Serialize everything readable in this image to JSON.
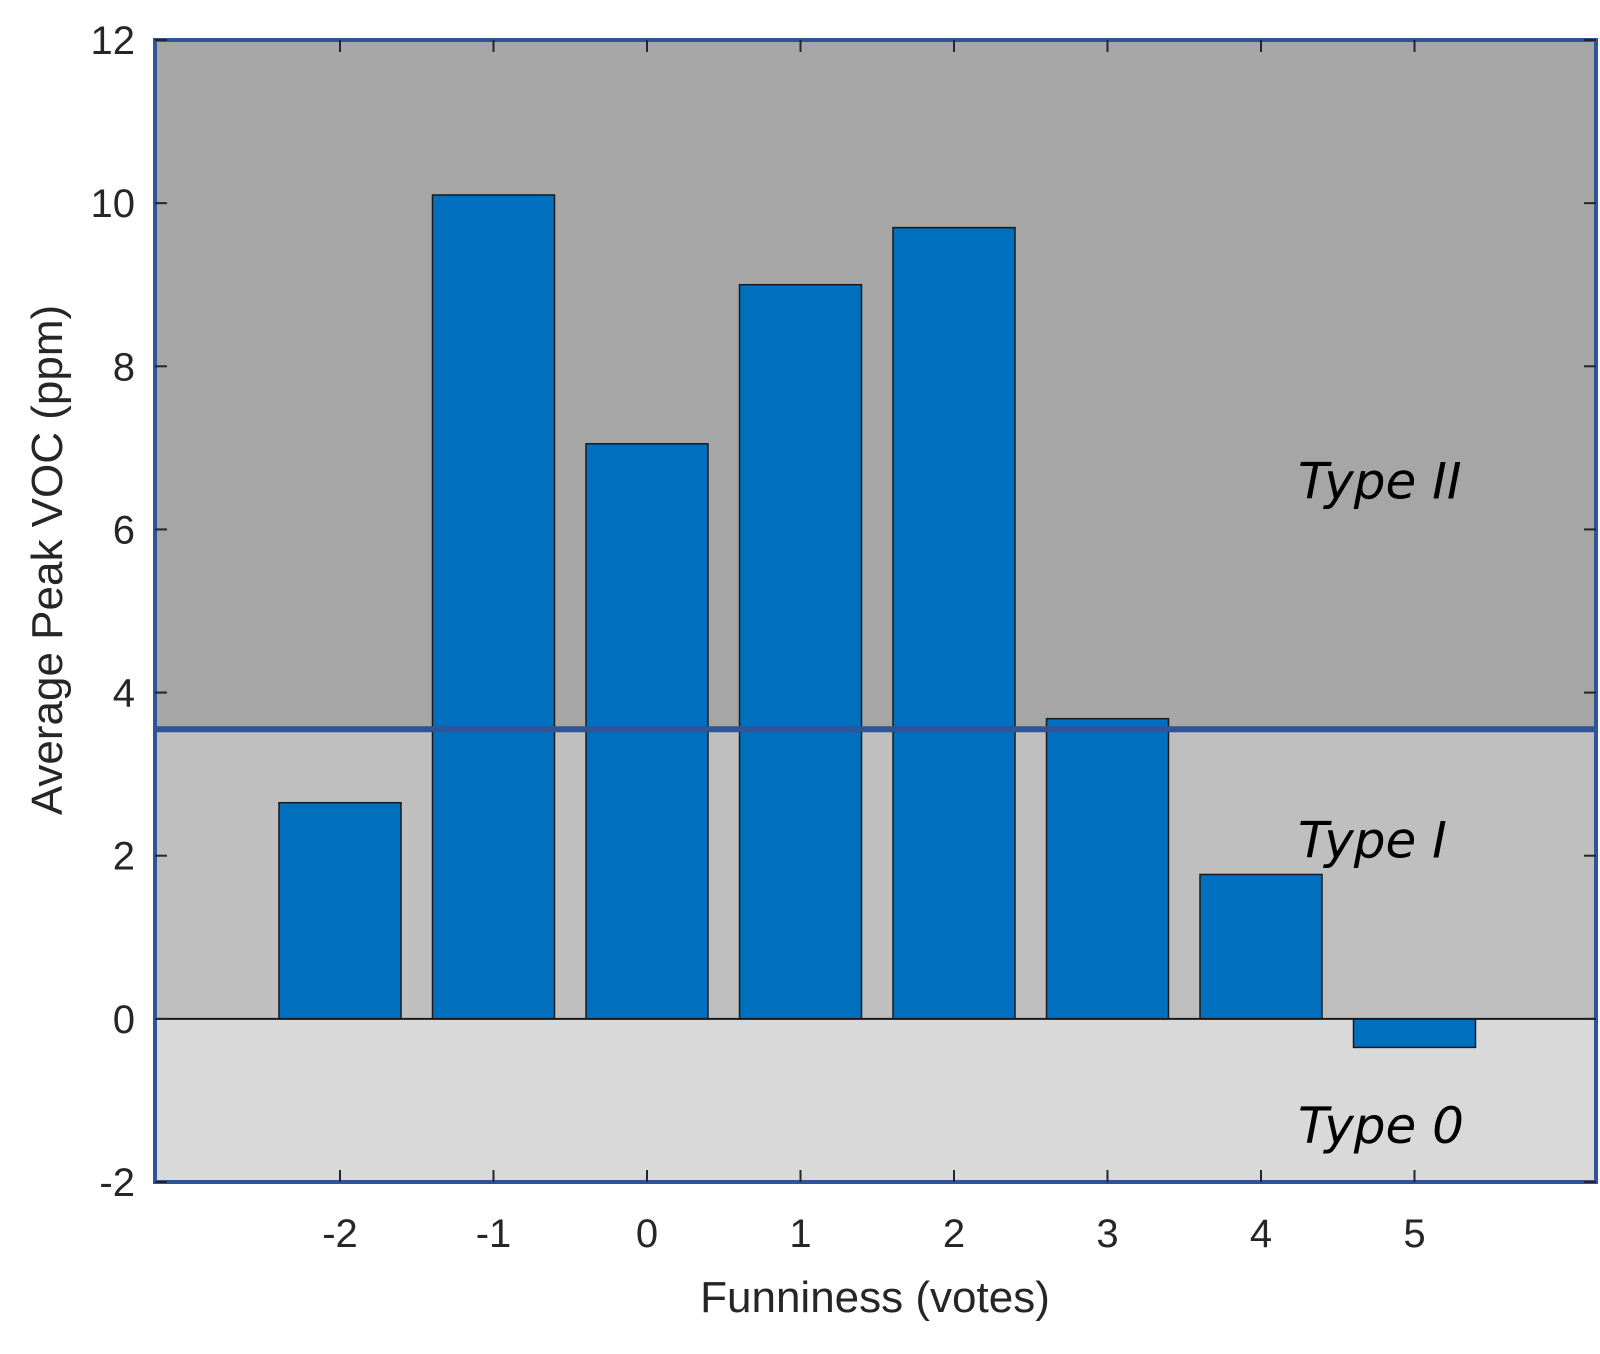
{
  "chart_data": {
    "type": "bar",
    "xlabel": "Funniness (votes)",
    "ylabel": "Average Peak VOC (ppm)",
    "categories": [
      "-2",
      "-1",
      "0",
      "1",
      "2",
      "3",
      "4",
      "5"
    ],
    "values": [
      2.65,
      10.1,
      7.05,
      9.0,
      9.7,
      3.68,
      1.77,
      -0.35
    ],
    "ylim": [
      -2,
      12
    ],
    "yticks": [
      "-2",
      "0",
      "2",
      "4",
      "6",
      "8",
      "10",
      "12"
    ],
    "grid": false,
    "bar_color": "#0070BE",
    "regions": [
      {
        "label": "Type II",
        "from": 3.55,
        "to": 12,
        "color": "#A6A6A6"
      },
      {
        "label": "Type I",
        "from": 0,
        "to": 3.55,
        "color": "#BFBFBF"
      },
      {
        "label": "Type 0",
        "from": -2,
        "to": 0,
        "color": "#D9D9D9"
      }
    ],
    "threshold_line_color": "#2F5597"
  }
}
